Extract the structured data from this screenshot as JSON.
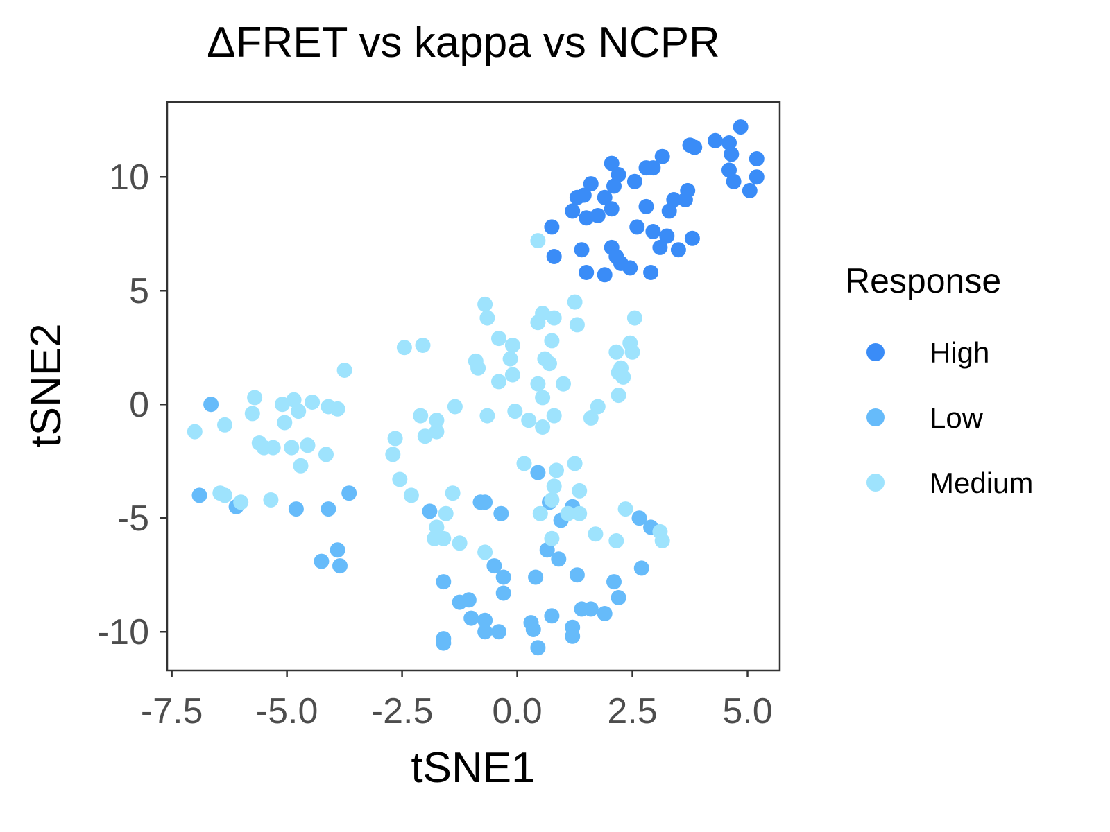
{
  "chart_data": {
    "type": "scatter",
    "title": "ΔFRET vs kappa vs NCPR",
    "xlabel": "tSNE1",
    "ylabel": "tSNE2",
    "xlim": [
      -7.6,
      5.7
    ],
    "ylim": [
      -11.7,
      13.3
    ],
    "xticks": [
      -7.5,
      -5.0,
      -2.5,
      0.0,
      2.5,
      5.0
    ],
    "xtick_labels": [
      "-7.5",
      "-5.0",
      "-2.5",
      "0.0",
      "2.5",
      "5.0"
    ],
    "yticks": [
      -10,
      -5,
      0,
      5,
      10
    ],
    "ytick_labels": [
      "-10",
      "-5",
      "0",
      "5",
      "10"
    ],
    "grid": false,
    "legend": {
      "title": "Response",
      "placement": "right"
    },
    "series": [
      {
        "name": "High",
        "color": "#3a8cf7",
        "points": [
          [
            4.85,
            12.2
          ],
          [
            4.3,
            11.6
          ],
          [
            4.6,
            11.5
          ],
          [
            3.75,
            11.4
          ],
          [
            3.85,
            11.3
          ],
          [
            4.65,
            11.0
          ],
          [
            5.2,
            10.8
          ],
          [
            3.15,
            10.9
          ],
          [
            2.05,
            10.6
          ],
          [
            2.2,
            10.1
          ],
          [
            2.8,
            10.4
          ],
          [
            2.95,
            10.4
          ],
          [
            4.6,
            10.3
          ],
          [
            5.2,
            10.0
          ],
          [
            4.7,
            9.8
          ],
          [
            2.55,
            9.8
          ],
          [
            1.6,
            9.7
          ],
          [
            2.1,
            9.6
          ],
          [
            3.7,
            9.4
          ],
          [
            5.05,
            9.4
          ],
          [
            1.3,
            9.1
          ],
          [
            1.45,
            9.2
          ],
          [
            1.9,
            9.1
          ],
          [
            3.4,
            9.0
          ],
          [
            3.65,
            9.0
          ],
          [
            2.8,
            8.7
          ],
          [
            2.05,
            8.6
          ],
          [
            3.3,
            8.5
          ],
          [
            1.2,
            8.5
          ],
          [
            1.5,
            8.2
          ],
          [
            1.75,
            8.3
          ],
          [
            0.75,
            7.8
          ],
          [
            2.6,
            7.8
          ],
          [
            2.95,
            7.6
          ],
          [
            3.25,
            7.4
          ],
          [
            3.8,
            7.3
          ],
          [
            1.4,
            6.8
          ],
          [
            2.05,
            6.9
          ],
          [
            3.1,
            6.9
          ],
          [
            3.5,
            6.8
          ],
          [
            0.8,
            6.5
          ],
          [
            2.15,
            6.5
          ],
          [
            2.25,
            6.2
          ],
          [
            1.5,
            5.8
          ],
          [
            1.9,
            5.7
          ],
          [
            2.45,
            6.0
          ],
          [
            2.9,
            5.8
          ]
        ]
      },
      {
        "name": "Low",
        "color": "#66bbfa",
        "points": [
          [
            -6.65,
            0.0
          ],
          [
            -6.9,
            -4.0
          ],
          [
            -6.1,
            -4.5
          ],
          [
            -4.8,
            -4.6
          ],
          [
            -4.1,
            -4.6
          ],
          [
            -3.65,
            -3.9
          ],
          [
            -4.25,
            -6.9
          ],
          [
            -3.9,
            -6.4
          ],
          [
            -3.85,
            -7.1
          ],
          [
            -1.9,
            -4.7
          ],
          [
            -0.8,
            -4.3
          ],
          [
            -0.7,
            -4.3
          ],
          [
            -0.35,
            -4.8
          ],
          [
            0.45,
            -3.0
          ],
          [
            0.7,
            -4.3
          ],
          [
            1.2,
            -4.5
          ],
          [
            0.95,
            -5.1
          ],
          [
            2.65,
            -5.0
          ],
          [
            2.9,
            -5.4
          ],
          [
            0.65,
            -6.4
          ],
          [
            0.9,
            -6.8
          ],
          [
            -0.5,
            -7.1
          ],
          [
            -0.3,
            -7.6
          ],
          [
            -1.6,
            -7.8
          ],
          [
            0.4,
            -7.6
          ],
          [
            1.3,
            -7.5
          ],
          [
            2.1,
            -7.8
          ],
          [
            2.7,
            -7.2
          ],
          [
            -0.3,
            -8.3
          ],
          [
            -1.25,
            -8.7
          ],
          [
            -1.05,
            -8.6
          ],
          [
            -1.0,
            -9.4
          ],
          [
            -0.7,
            -9.5
          ],
          [
            -0.7,
            -10.0
          ],
          [
            -0.4,
            -10.0
          ],
          [
            0.3,
            -9.6
          ],
          [
            0.35,
            -9.9
          ],
          [
            0.75,
            -9.3
          ],
          [
            1.2,
            -9.8
          ],
          [
            1.2,
            -10.2
          ],
          [
            1.4,
            -9.0
          ],
          [
            1.6,
            -9.0
          ],
          [
            1.9,
            -9.2
          ],
          [
            2.2,
            -8.5
          ],
          [
            -1.6,
            -10.3
          ],
          [
            -1.6,
            -10.5
          ],
          [
            0.45,
            -10.7
          ]
        ]
      },
      {
        "name": "Medium",
        "color": "#9ee3fd",
        "points": [
          [
            0.45,
            7.2
          ],
          [
            -0.7,
            4.4
          ],
          [
            1.25,
            4.5
          ],
          [
            0.55,
            4.0
          ],
          [
            -0.65,
            3.8
          ],
          [
            0.8,
            3.8
          ],
          [
            0.45,
            3.6
          ],
          [
            1.3,
            3.5
          ],
          [
            2.55,
            3.8
          ],
          [
            -0.4,
            2.9
          ],
          [
            0.75,
            2.8
          ],
          [
            -2.45,
            2.5
          ],
          [
            -2.05,
            2.6
          ],
          [
            -0.1,
            2.6
          ],
          [
            2.45,
            2.7
          ],
          [
            2.15,
            2.3
          ],
          [
            2.5,
            2.3
          ],
          [
            -0.9,
            1.9
          ],
          [
            -0.85,
            1.6
          ],
          [
            -0.15,
            2.0
          ],
          [
            0.6,
            2.0
          ],
          [
            0.7,
            1.8
          ],
          [
            2.25,
            1.6
          ],
          [
            2.2,
            1.4
          ],
          [
            2.3,
            1.2
          ],
          [
            -3.75,
            1.5
          ],
          [
            -0.4,
            1.0
          ],
          [
            -0.1,
            1.3
          ],
          [
            0.45,
            0.9
          ],
          [
            1.0,
            0.9
          ],
          [
            0.55,
            0.3
          ],
          [
            2.2,
            0.4
          ],
          [
            -5.7,
            0.3
          ],
          [
            -5.1,
            0.0
          ],
          [
            -4.85,
            0.2
          ],
          [
            -4.45,
            0.1
          ],
          [
            -4.1,
            -0.1
          ],
          [
            -3.9,
            -0.2
          ],
          [
            -5.75,
            -0.4
          ],
          [
            -4.75,
            -0.3
          ],
          [
            -5.05,
            -0.8
          ],
          [
            -6.35,
            -0.9
          ],
          [
            -7.0,
            -1.2
          ],
          [
            -1.35,
            -0.1
          ],
          [
            -0.65,
            -0.5
          ],
          [
            -0.05,
            -0.3
          ],
          [
            1.75,
            -0.1
          ],
          [
            -2.1,
            -0.5
          ],
          [
            -1.75,
            -0.7
          ],
          [
            -1.75,
            -1.2
          ],
          [
            -2.0,
            -1.4
          ],
          [
            0.25,
            -0.7
          ],
          [
            0.55,
            -1.0
          ],
          [
            0.8,
            -0.5
          ],
          [
            1.6,
            -0.6
          ],
          [
            -5.6,
            -1.7
          ],
          [
            -5.5,
            -1.9
          ],
          [
            -5.3,
            -1.9
          ],
          [
            -4.9,
            -1.9
          ],
          [
            -4.55,
            -1.8
          ],
          [
            -2.65,
            -1.5
          ],
          [
            -4.15,
            -2.2
          ],
          [
            -2.7,
            -2.2
          ],
          [
            -4.7,
            -2.7
          ],
          [
            0.15,
            -2.6
          ],
          [
            1.25,
            -2.6
          ],
          [
            0.85,
            -2.9
          ],
          [
            -2.55,
            -3.3
          ],
          [
            -2.3,
            -4.0
          ],
          [
            -6.45,
            -3.9
          ],
          [
            -6.35,
            -4.0
          ],
          [
            -6.0,
            -4.3
          ],
          [
            -5.35,
            -4.2
          ],
          [
            -1.4,
            -3.9
          ],
          [
            0.8,
            -3.6
          ],
          [
            1.35,
            -3.8
          ],
          [
            0.75,
            -4.2
          ],
          [
            -1.55,
            -4.8
          ],
          [
            0.5,
            -4.8
          ],
          [
            1.1,
            -4.8
          ],
          [
            1.35,
            -4.8
          ],
          [
            2.35,
            -4.6
          ],
          [
            -1.75,
            -5.4
          ],
          [
            -1.8,
            -5.9
          ],
          [
            -1.6,
            -5.9
          ],
          [
            -1.25,
            -6.1
          ],
          [
            0.75,
            -5.9
          ],
          [
            1.7,
            -5.7
          ],
          [
            2.15,
            -6.0
          ],
          [
            3.1,
            -5.6
          ],
          [
            3.15,
            -6.0
          ],
          [
            -0.7,
            -6.5
          ]
        ]
      }
    ]
  }
}
